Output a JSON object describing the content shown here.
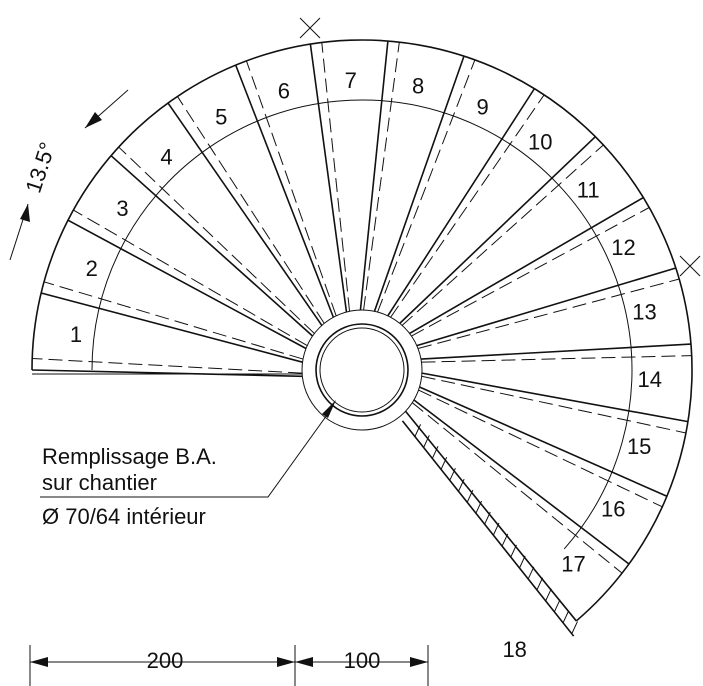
{
  "steps": [
    "1",
    "2",
    "3",
    "4",
    "5",
    "6",
    "7",
    "8",
    "9",
    "10",
    "11",
    "12",
    "13",
    "14",
    "15",
    "16",
    "17",
    "18"
  ],
  "angle_label": "13.5°",
  "note": [
    "Remplissage B.A.",
    "sur chantier",
    "Ø 70/64 intérieur"
  ],
  "dimensions": [
    "200",
    "100"
  ]
}
